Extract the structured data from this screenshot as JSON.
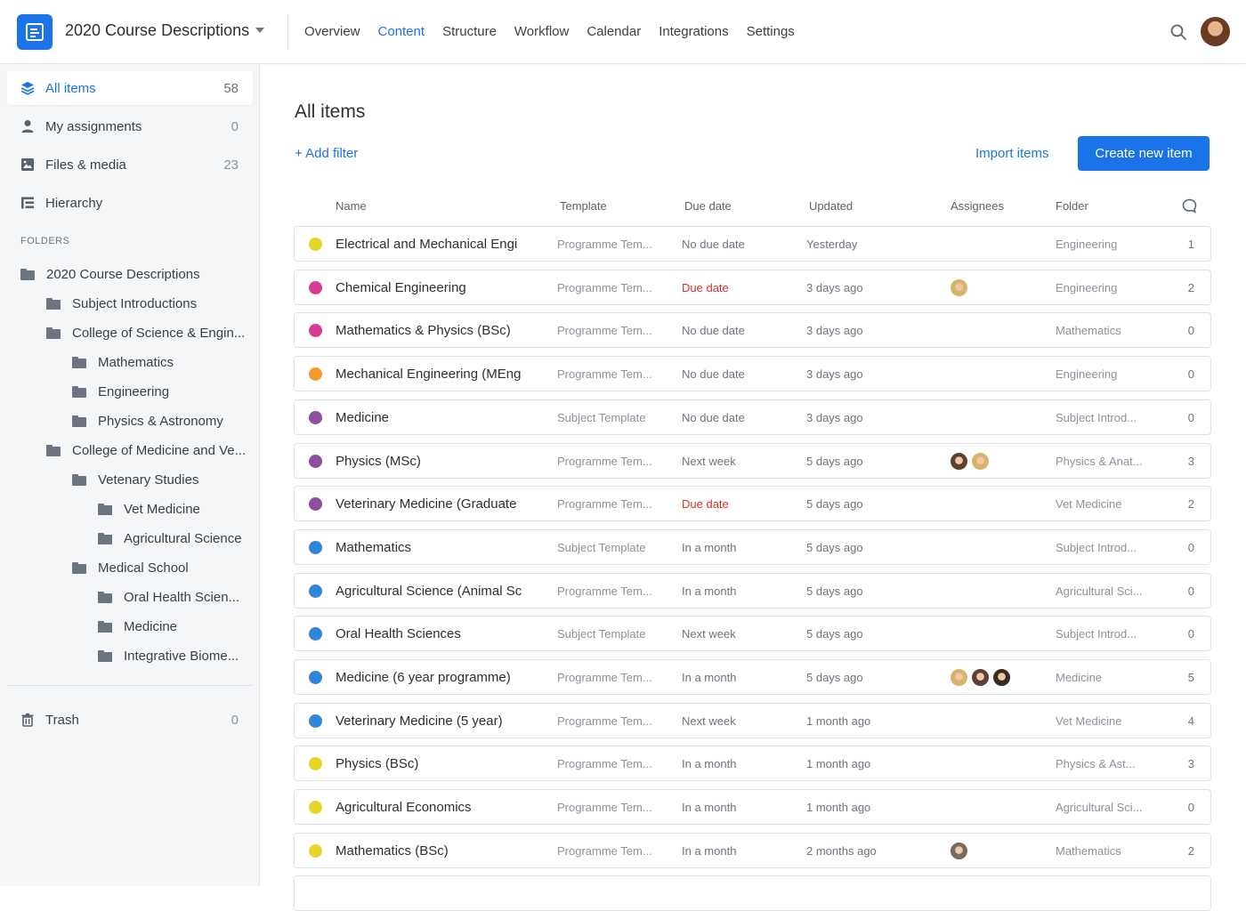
{
  "header": {
    "project_title": "2020 Course Descriptions",
    "nav": [
      "Overview",
      "Content",
      "Structure",
      "Workflow",
      "Calendar",
      "Integrations",
      "Settings"
    ],
    "active_nav": "Content"
  },
  "sidebar": {
    "items": [
      {
        "label": "All items",
        "count": "58"
      },
      {
        "label": "My assignments",
        "count": "0"
      },
      {
        "label": "Files & media",
        "count": "23"
      },
      {
        "label": "Hierarchy",
        "count": ""
      }
    ],
    "folders_header": "FOLDERS",
    "folders": [
      {
        "label": "2020 Course Descriptions",
        "level": 0
      },
      {
        "label": "Subject Introductions",
        "level": 1
      },
      {
        "label": "College of Science & Engin...",
        "level": 1
      },
      {
        "label": "Mathematics",
        "level": 2
      },
      {
        "label": "Engineering",
        "level": 2
      },
      {
        "label": "Physics & Astronomy",
        "level": 2
      },
      {
        "label": "College of Medicine and Ve...",
        "level": 1
      },
      {
        "label": "Vetenary Studies",
        "level": 2
      },
      {
        "label": "Vet Medicine",
        "level": 3
      },
      {
        "label": "Agricultural Science",
        "level": 3
      },
      {
        "label": "Medical School",
        "level": 2
      },
      {
        "label": "Oral Health Scien...",
        "level": 3
      },
      {
        "label": "Medicine",
        "level": 3
      },
      {
        "label": "Integrative Biome...",
        "level": 3
      }
    ],
    "trash": {
      "label": "Trash",
      "count": "0"
    }
  },
  "main": {
    "title": "All items",
    "add_filter": "+ Add filter",
    "import_label": "Import items",
    "create_label": "Create new item",
    "columns": {
      "name": "Name",
      "template": "Template",
      "due": "Due date",
      "updated": "Updated",
      "assignees": "Assignees",
      "folder": "Folder"
    },
    "rows": [
      {
        "color": "#e6d62a",
        "name": "Electrical and Mechanical Engi",
        "template": "Programme Tem...",
        "due": "No due date",
        "due_red": false,
        "updated": "Yesterday",
        "assignees": [],
        "folder": "Engineering",
        "comments": "1"
      },
      {
        "color": "#d93b8f",
        "name": "Chemical Engineering",
        "template": "Programme Tem...",
        "due": "Due date",
        "due_red": true,
        "updated": "3 days ago",
        "assignees": [
          "#d8b36a"
        ],
        "folder": "Engineering",
        "comments": "2"
      },
      {
        "color": "#d93b8f",
        "name": "Mathematics & Physics (BSc)",
        "template": "Programme Tem...",
        "due": "No due date",
        "due_red": false,
        "updated": "3 days ago",
        "assignees": [],
        "folder": "Mathematics",
        "comments": "0"
      },
      {
        "color": "#f29a2e",
        "name": "Mechanical Engineering (MEng",
        "template": "Programme Tem...",
        "due": "No due date",
        "due_red": false,
        "updated": "3 days ago",
        "assignees": [],
        "folder": "Engineering",
        "comments": "0"
      },
      {
        "color": "#8e4fa0",
        "name": "Medicine",
        "template": "Subject Template",
        "due": "No due date",
        "due_red": false,
        "updated": "3 days ago",
        "assignees": [],
        "folder": "Subject Introd...",
        "comments": "0"
      },
      {
        "color": "#8e4fa0",
        "name": "Physics (MSc)",
        "template": "Programme Tem...",
        "due": "Next week",
        "due_red": false,
        "updated": "5 days ago",
        "assignees": [
          "#5b4033",
          "#d8b36a"
        ],
        "folder": "Physics & Anat...",
        "comments": "3"
      },
      {
        "color": "#8e4fa0",
        "name": "Veterinary Medicine (Graduate",
        "template": "Programme Tem...",
        "due": "Due date",
        "due_red": true,
        "updated": "5 days ago",
        "assignees": [],
        "folder": "Vet Medicine",
        "comments": "2"
      },
      {
        "color": "#2f86d6",
        "name": "Mathematics",
        "template": "Subject Template",
        "due": "In a month",
        "due_red": false,
        "updated": "5 days ago",
        "assignees": [],
        "folder": "Subject Introd...",
        "comments": "0"
      },
      {
        "color": "#2f86d6",
        "name": "Agricultural Science (Animal Sc",
        "template": "Programme Tem...",
        "due": "In a month",
        "due_red": false,
        "updated": "5 days ago",
        "assignees": [],
        "folder": "Agricultural Sci...",
        "comments": "0"
      },
      {
        "color": "#2f86d6",
        "name": "Oral Health Sciences",
        "template": "Subject Template",
        "due": "Next week",
        "due_red": false,
        "updated": "5 days ago",
        "assignees": [],
        "folder": "Subject Introd...",
        "comments": "0"
      },
      {
        "color": "#2f86d6",
        "name": "Medicine (6 year programme)",
        "template": "Programme Tem...",
        "due": "In a month",
        "due_red": false,
        "updated": "5 days ago",
        "assignees": [
          "#d8b36a",
          "#5b4033",
          "#3a2a24"
        ],
        "folder": "Medicine",
        "comments": "5"
      },
      {
        "color": "#2f86d6",
        "name": "Veterinary Medicine (5 year)",
        "template": "Programme Tem...",
        "due": "Next week",
        "due_red": false,
        "updated": "1 month ago",
        "assignees": [],
        "folder": "Vet Medicine",
        "comments": "4"
      },
      {
        "color": "#e6d62a",
        "name": "Physics (BSc)",
        "template": "Programme Tem...",
        "due": "In a month",
        "due_red": false,
        "updated": "1 month ago",
        "assignees": [],
        "folder": "Physics & Ast...",
        "comments": "3"
      },
      {
        "color": "#e6d62a",
        "name": "Agricultural Economics",
        "template": "Programme Tem...",
        "due": "In a month",
        "due_red": false,
        "updated": "1 month ago",
        "assignees": [],
        "folder": "Agricultural Sci...",
        "comments": "0"
      },
      {
        "color": "#e6d62a",
        "name": "Mathematics (BSc)",
        "template": "Programme Tem...",
        "due": "In a month",
        "due_red": false,
        "updated": "2 months ago",
        "assignees": [
          "#7a6a60"
        ],
        "folder": "Mathematics",
        "comments": "2"
      }
    ]
  },
  "colors": {
    "accent": "#1a73e8",
    "due_red": "#d93025"
  }
}
